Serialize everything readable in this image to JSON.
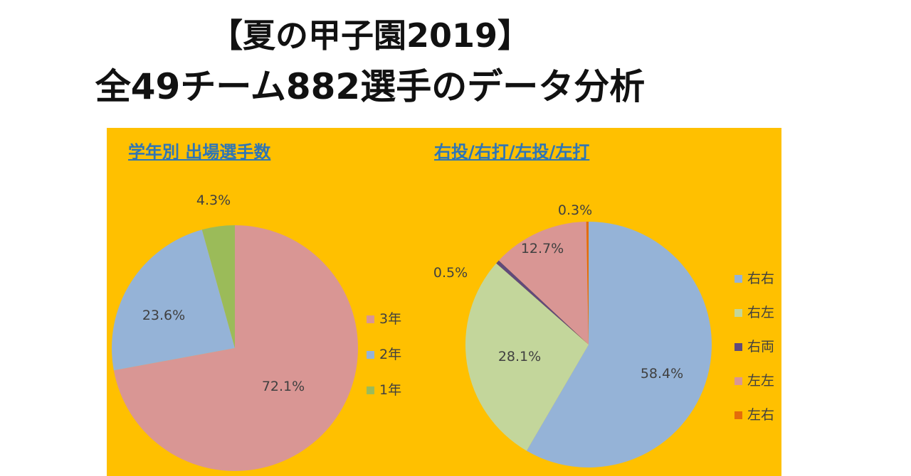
{
  "title_line1": "【夏の甲子園2019】",
  "title_line2": "全49チーム882選手のデータ分析",
  "chart_data": [
    {
      "type": "pie",
      "title": "学年別 出場選手数",
      "categories": [
        "3年",
        "2年",
        "1年"
      ],
      "values": [
        72.1,
        23.6,
        4.3
      ],
      "labels": [
        "72.1%",
        "23.6%",
        "4.3%"
      ],
      "colors": [
        "#d99694",
        "#95b3d7",
        "#9bbb59"
      ],
      "legend": "right"
    },
    {
      "type": "pie",
      "title": "右投/右打/左投/左打",
      "categories": [
        "右右",
        "右左",
        "右両",
        "左左",
        "左右"
      ],
      "values": [
        58.4,
        28.1,
        0.5,
        12.7,
        0.3
      ],
      "labels": [
        "58.4%",
        "28.1%",
        "0.5%",
        "12.7%",
        "0.3%"
      ],
      "colors": [
        "#95b3d7",
        "#c3d69b",
        "#604a7b",
        "#d99694",
        "#e46c0a"
      ],
      "legend": "right"
    }
  ]
}
